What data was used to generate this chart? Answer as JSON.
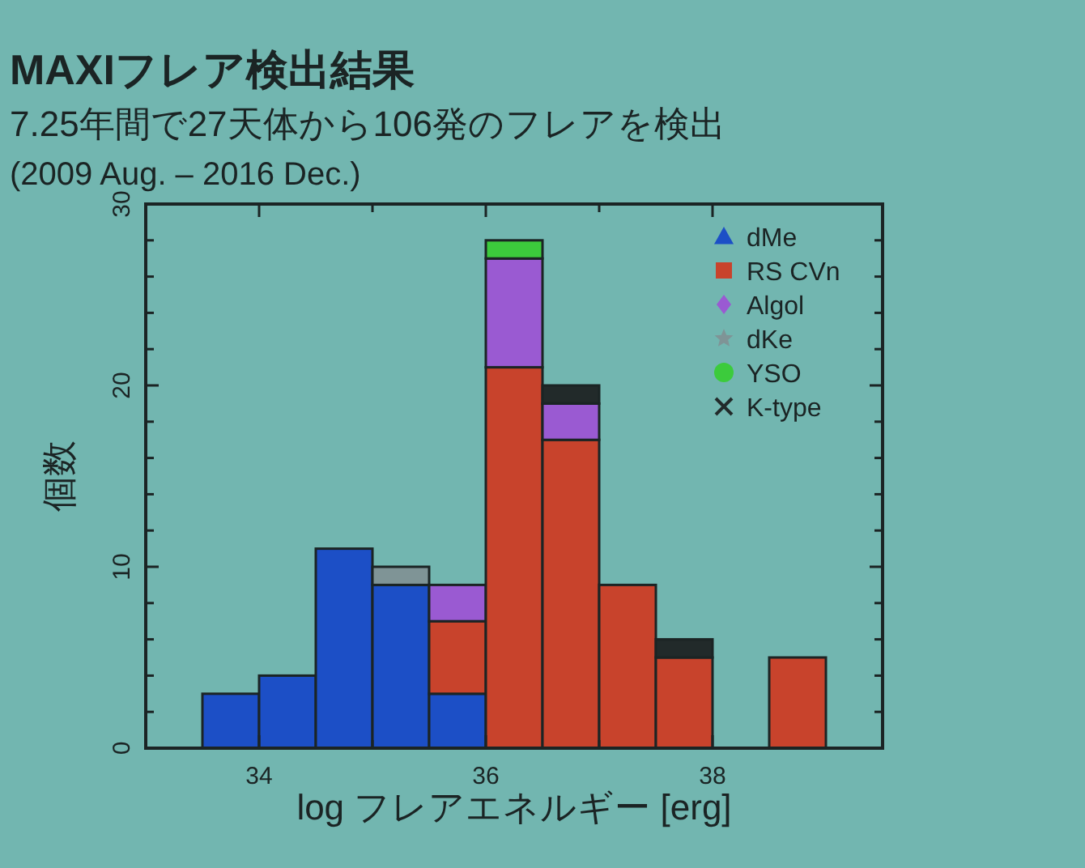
{
  "chart_data": {
    "type": "bar",
    "title": "MAXIフレア検出結果",
    "subtitle": "7.25年間で27天体から106発のフレアを検出",
    "annotations": [
      "(2009 Aug. – 2016 Dec.)"
    ],
    "xlabel": "log フレアエネルギー [erg]",
    "ylabel": "個数",
    "x": [
      33.75,
      34.25,
      34.75,
      35.25,
      35.75,
      36.25,
      36.75,
      37.25,
      37.75,
      38.75
    ],
    "stacked": true,
    "series": [
      {
        "name": "dMe",
        "color": "#1c4fc6",
        "marker": "triangle",
        "values": [
          3,
          4,
          11,
          9,
          3,
          0,
          0,
          0,
          0,
          0
        ]
      },
      {
        "name": "RS CVn",
        "color": "#c8432c",
        "marker": "square",
        "values": [
          0,
          0,
          0,
          0,
          4,
          21,
          17,
          9,
          5,
          5
        ]
      },
      {
        "name": "Algol",
        "color": "#9a5ad2",
        "marker": "diamond",
        "values": [
          0,
          0,
          0,
          0,
          2,
          6,
          2,
          0,
          0,
          0
        ]
      },
      {
        "name": "dKe",
        "color": "#7f9496",
        "marker": "star",
        "values": [
          0,
          0,
          0,
          1,
          0,
          0,
          0,
          0,
          0,
          0
        ]
      },
      {
        "name": "YSO",
        "color": "#3ccb3c",
        "marker": "circle",
        "values": [
          0,
          0,
          0,
          0,
          0,
          1,
          0,
          0,
          0,
          0
        ]
      },
      {
        "name": "K-type",
        "color": "#222a2a",
        "marker": "cross",
        "values": [
          0,
          0,
          0,
          0,
          0,
          0,
          1,
          0,
          1,
          0
        ]
      }
    ],
    "xlim": [
      33,
      39.5
    ],
    "xticks": [
      34,
      {
        "value": 35,
        "label": null
      },
      36,
      {
        "value": 37,
        "label": null
      },
      38
    ],
    "ylim": [
      0,
      30
    ],
    "yticks": [
      0,
      {
        "value": 2,
        "label": null
      },
      {
        "value": 4,
        "label": null
      },
      {
        "value": 6,
        "label": null
      },
      {
        "value": 8,
        "label": null
      },
      10,
      {
        "value": 12,
        "label": null
      },
      {
        "value": 14,
        "label": null
      },
      {
        "value": 16,
        "label": null
      },
      {
        "value": 18,
        "label": null
      },
      20,
      {
        "value": 22,
        "label": null
      },
      {
        "value": 24,
        "label": null
      },
      {
        "value": 26,
        "label": null
      },
      {
        "value": 28,
        "label": null
      },
      30
    ],
    "legend": "top right"
  }
}
